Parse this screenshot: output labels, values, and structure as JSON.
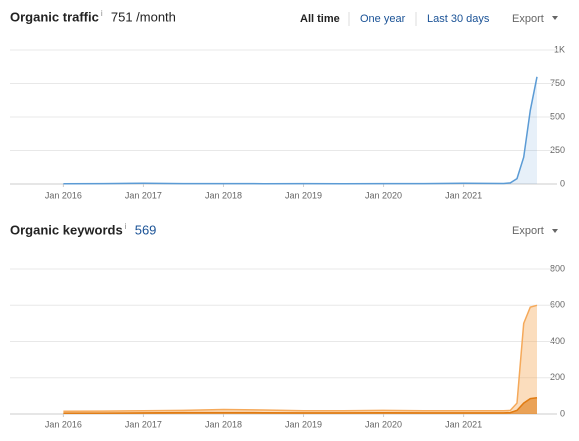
{
  "time_controls": [
    "All time",
    "One year",
    "Last 30 days"
  ],
  "chart_data": [
    {
      "type": "line",
      "title": "Organic traffic",
      "info_icon": "i",
      "metric": "751 /month",
      "export": "Export",
      "x": [
        "2016-01",
        "2016-07",
        "2017-01",
        "2017-07",
        "2018-01",
        "2018-07",
        "2019-01",
        "2019-07",
        "2020-01",
        "2020-07",
        "2021-01",
        "2021-07",
        "2021-08",
        "2021-09",
        "2021-10",
        "2021-11",
        "2021-12"
      ],
      "series": [
        {
          "color": "#5b9bd5",
          "values": [
            2,
            3,
            5,
            3,
            3,
            2,
            3,
            2,
            3,
            3,
            5,
            4,
            8,
            40,
            200,
            550,
            800
          ]
        }
      ],
      "xlim": [
        "2015-05",
        "2021-12"
      ],
      "xticks": [
        {
          "value": "2016-01",
          "label": "Jan 2016"
        },
        {
          "value": "2017-01",
          "label": "Jan 2017"
        },
        {
          "value": "2018-01",
          "label": "Jan 2018"
        },
        {
          "value": "2019-01",
          "label": "Jan 2019"
        },
        {
          "value": "2020-01",
          "label": "Jan 2020"
        },
        {
          "value": "2021-01",
          "label": "Jan 2021"
        }
      ],
      "ylim": [
        0,
        1000
      ],
      "yticks": [
        0,
        250,
        500,
        750,
        {
          "value": 1000,
          "label": "1K"
        }
      ],
      "grid": true
    },
    {
      "type": "area",
      "title": "Organic keywords",
      "info_icon": "i",
      "metric": "569",
      "export": "Export",
      "x": [
        "2016-01",
        "2016-07",
        "2017-01",
        "2017-07",
        "2018-01",
        "2018-07",
        "2019-01",
        "2019-07",
        "2020-01",
        "2020-07",
        "2021-01",
        "2021-07",
        "2021-08",
        "2021-09",
        "2021-10",
        "2021-11",
        "2021-12"
      ],
      "series": [
        {
          "color": "#f5a95a",
          "values": [
            15,
            16,
            18,
            20,
            25,
            22,
            18,
            18,
            20,
            18,
            18,
            18,
            20,
            60,
            500,
            590,
            600
          ]
        },
        {
          "color": "#e07b12",
          "values": [
            5,
            5,
            6,
            8,
            8,
            7,
            6,
            6,
            7,
            6,
            6,
            6,
            8,
            20,
            60,
            85,
            90
          ]
        }
      ],
      "xlim": [
        "2015-05",
        "2021-12"
      ],
      "xticks": [
        {
          "value": "2016-01",
          "label": "Jan 2016"
        },
        {
          "value": "2017-01",
          "label": "Jan 2017"
        },
        {
          "value": "2018-01",
          "label": "Jan 2018"
        },
        {
          "value": "2019-01",
          "label": "Jan 2019"
        },
        {
          "value": "2020-01",
          "label": "Jan 2020"
        },
        {
          "value": "2021-01",
          "label": "Jan 2021"
        }
      ],
      "ylim": [
        0,
        800
      ],
      "yticks": [
        0,
        200,
        400,
        600,
        800
      ],
      "grid": true
    }
  ]
}
